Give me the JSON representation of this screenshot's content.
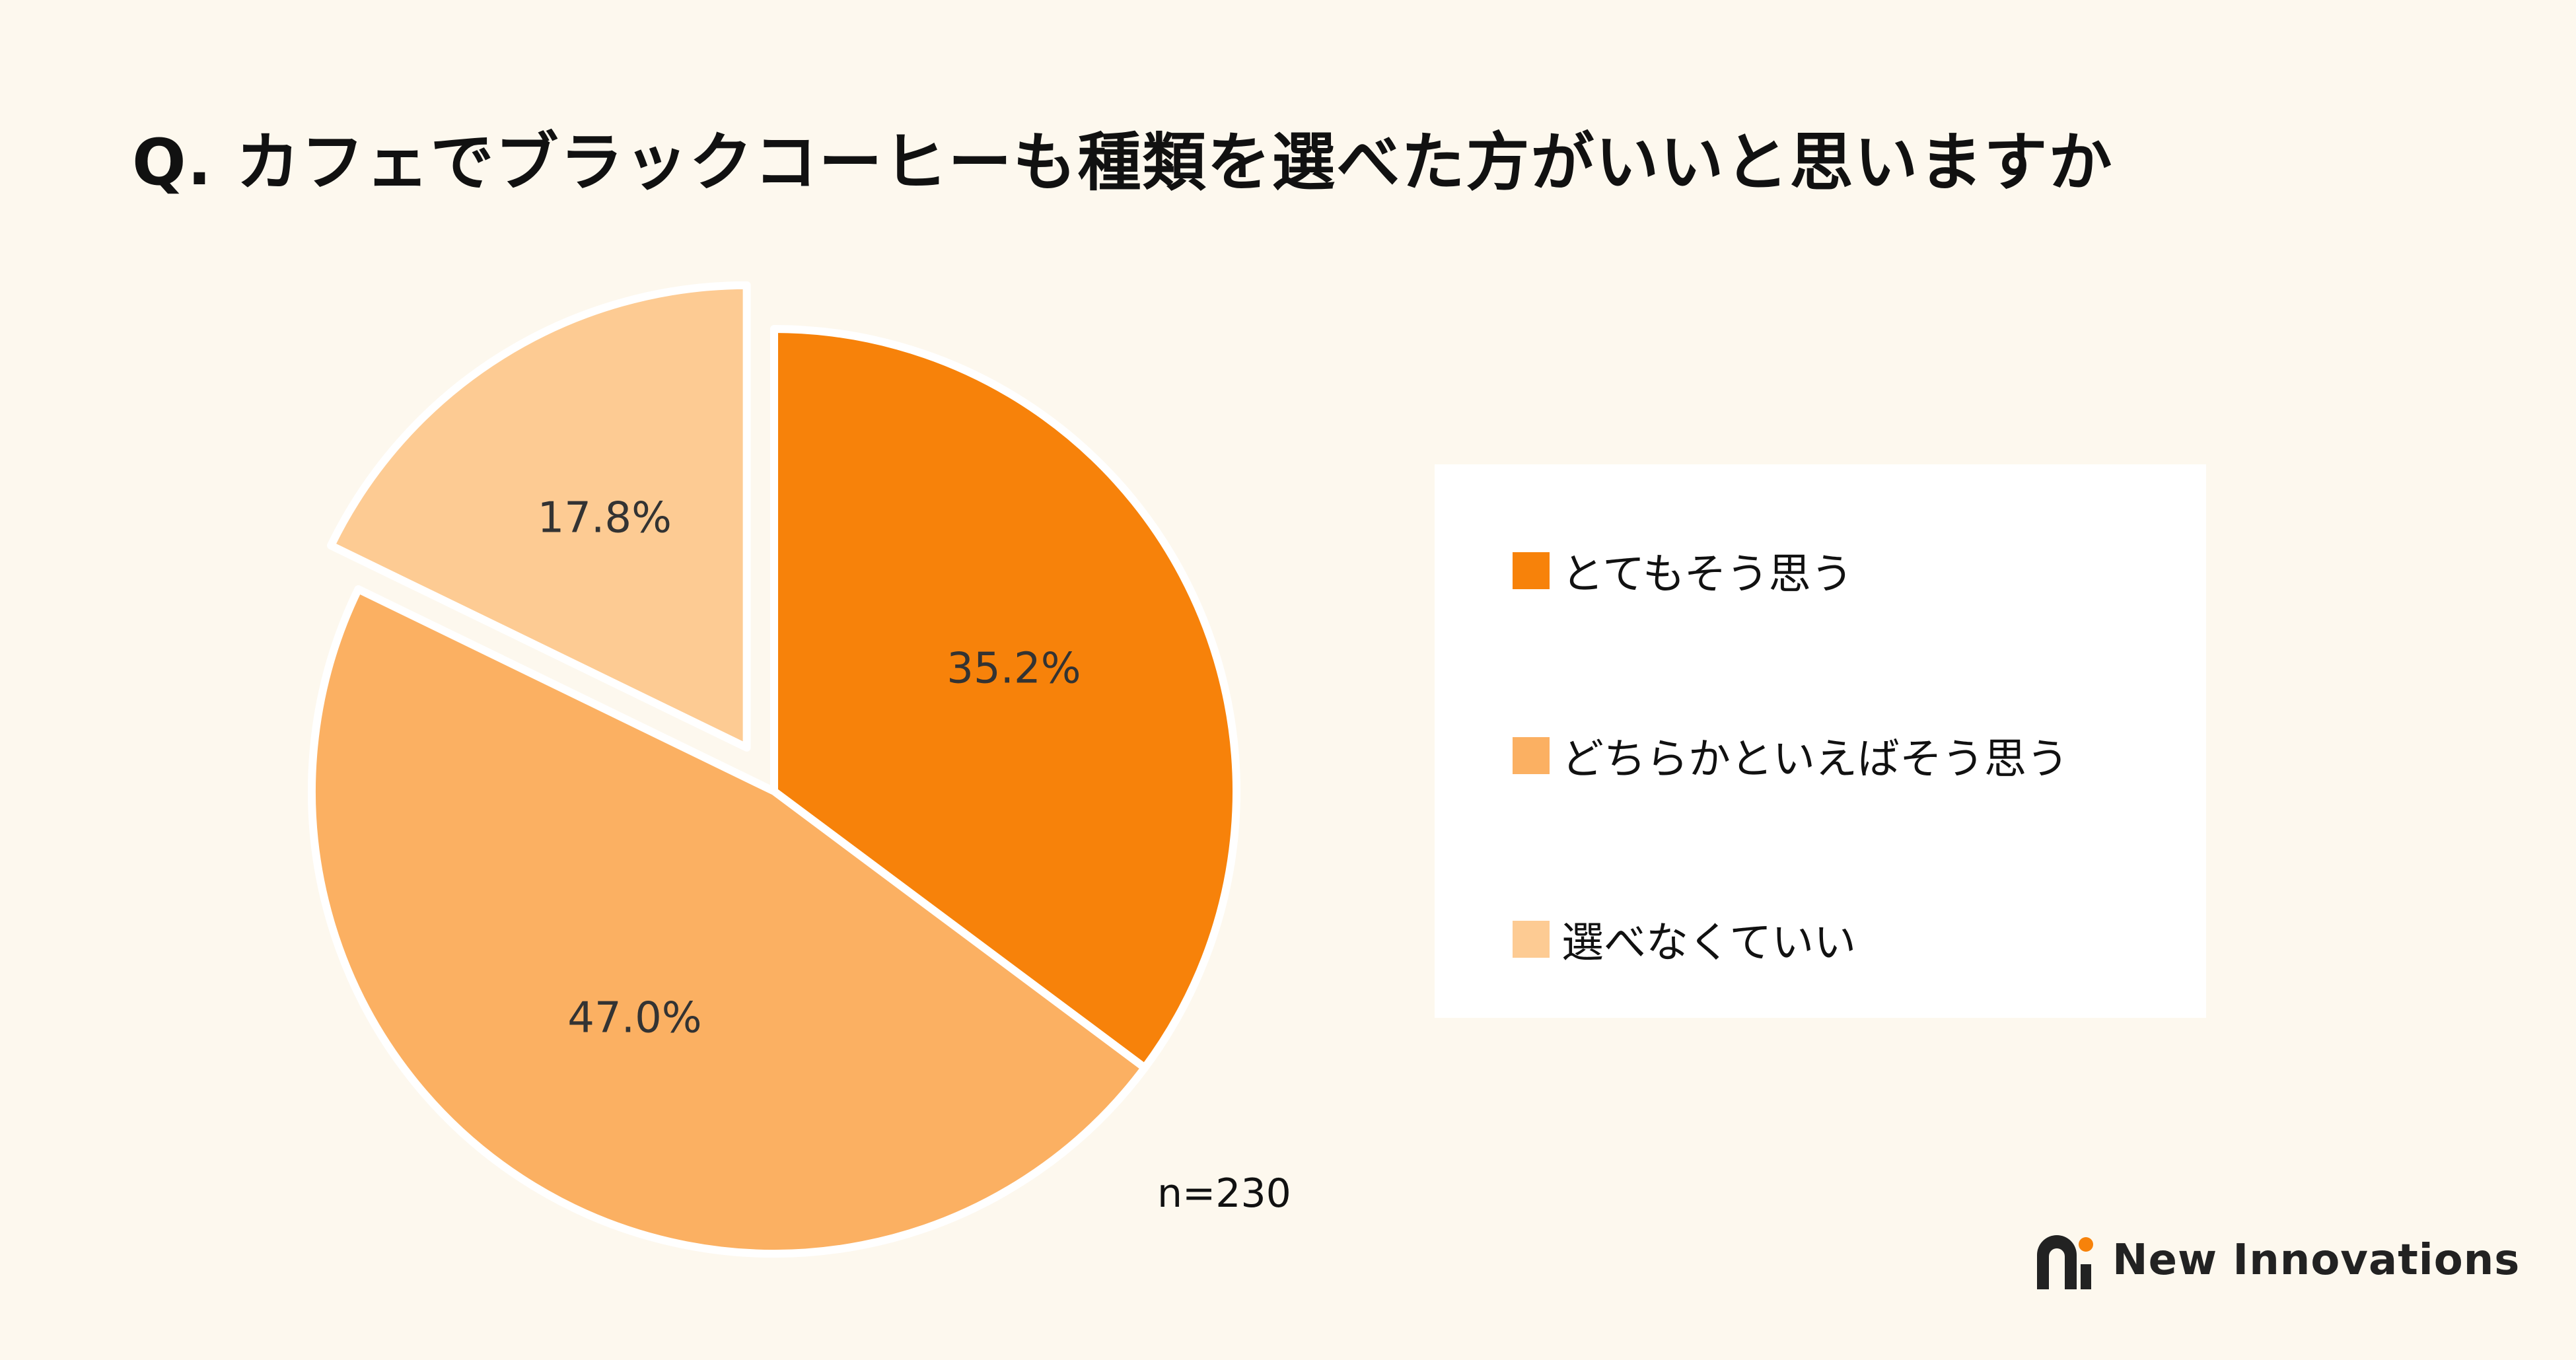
{
  "chart_data": {
    "type": "pie",
    "title": "Q. カフェでブラックコーヒーも種類を選べた方がいいと思いますか",
    "categories": [
      "とてもそう思う",
      "どちらかといえばそう思う",
      "選べなくていい"
    ],
    "values": [
      35.2,
      47.0,
      17.8
    ],
    "value_labels": [
      "35.2%",
      "47.0%",
      "17.8%"
    ],
    "colors": [
      "#f7820a",
      "#fbb062",
      "#fdcb93"
    ],
    "exploded": [
      false,
      false,
      true
    ],
    "legend_placement": "right",
    "sample_size": "n=230"
  },
  "brand": {
    "name": "New Innovations",
    "accent_color": "#f7820a",
    "dark_color": "#222222"
  }
}
